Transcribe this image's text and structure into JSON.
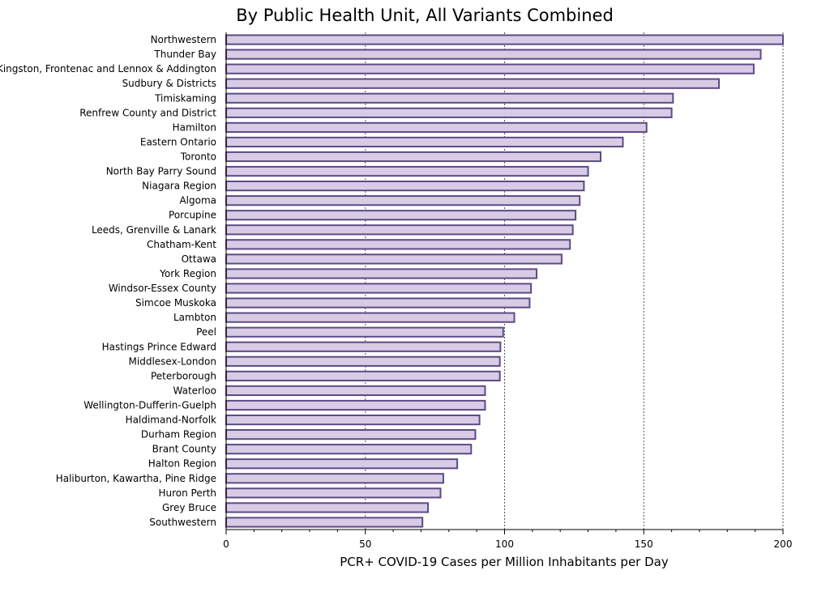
{
  "chart_data": {
    "type": "bar",
    "orientation": "horizontal",
    "title": "By Public Health Unit, All Variants Combined",
    "xlabel": "PCR+ COVID-19 Cases per Million Inhabitants per Day",
    "ylabel": "",
    "xlim": [
      0,
      200
    ],
    "xticks": [
      "0",
      "50",
      "100",
      "150",
      "200"
    ],
    "grid": "vertical dashed",
    "categories": [
      "Northwestern",
      "Thunder Bay",
      "Kingston, Frontenac and Lennox & Addington",
      "Sudbury & Districts",
      "Timiskaming",
      "Renfrew County and District",
      "Hamilton",
      "Eastern Ontario",
      "Toronto",
      "North Bay Parry Sound",
      "Niagara Region",
      "Algoma",
      "Porcupine",
      "Leeds, Grenville & Lanark",
      "Chatham-Kent",
      "Ottawa",
      "York Region",
      "Windsor-Essex County",
      "Simcoe Muskoka",
      "Lambton",
      "Peel",
      "Hastings Prince Edward",
      "Middlesex-London",
      "Peterborough",
      "Waterloo",
      "Wellington-Dufferin-Guelph",
      "Haldimand-Norfolk",
      "Durham Region",
      "Brant County",
      "Halton Region",
      "Haliburton, Kawartha, Pine Ridge",
      "Huron Perth",
      "Grey Bruce",
      "Southwestern"
    ],
    "values": [
      200,
      192,
      189.5,
      177,
      160.5,
      160,
      151,
      142.5,
      134.5,
      130,
      128.5,
      127,
      125.5,
      124.5,
      123.5,
      120.5,
      111.5,
      109.5,
      109,
      103.5,
      99.5,
      98.5,
      98.3,
      98.3,
      93,
      93,
      91,
      89.5,
      88,
      83,
      78,
      77,
      72.5,
      70.5
    ],
    "colors": {
      "bar_fill": "#d8cbe5",
      "bar_stroke": "#5e4a85",
      "grid": "#555555"
    }
  }
}
